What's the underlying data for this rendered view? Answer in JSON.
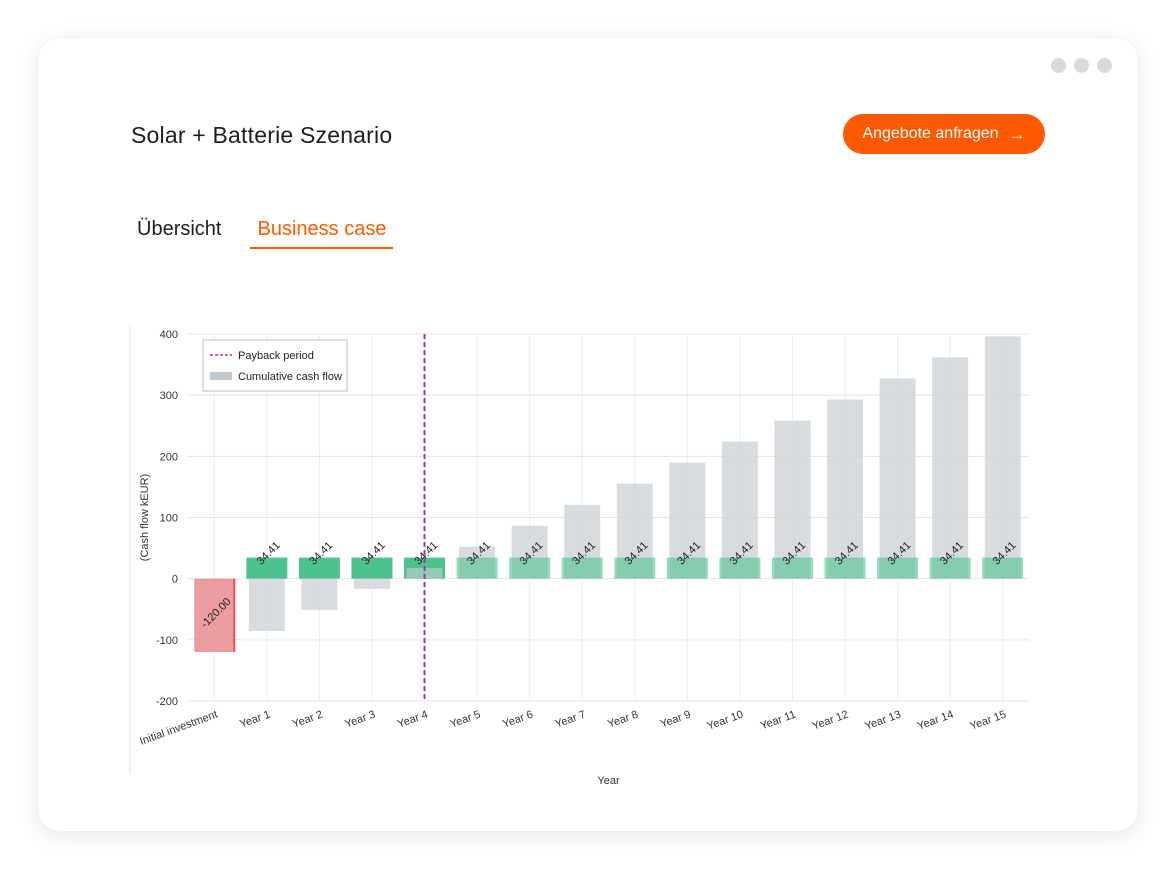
{
  "window": {
    "dots": [
      "dot",
      "dot",
      "dot"
    ]
  },
  "header": {
    "title": "Solar + Batterie Szenario",
    "cta_label": "Angebote anfragen",
    "cta_icon": "arrow-right-icon"
  },
  "tabs": [
    {
      "label": "Übersicht",
      "active": false
    },
    {
      "label": "Business case",
      "active": true
    }
  ],
  "colors": {
    "accent": "#ff5a00",
    "positive": "#4cc28f",
    "negative": "#e88b90",
    "cumulative": "#cfd3d7",
    "payback": "#a03c9c"
  },
  "chart_data": {
    "type": "bar",
    "xlabel": "Year",
    "ylabel": "(Cash flow kEUR)",
    "ylim": [
      -200,
      400
    ],
    "yticks": [
      -200,
      -100,
      0,
      100,
      200,
      300,
      400
    ],
    "categories": [
      "Initial investment",
      "Year 1",
      "Year 2",
      "Year 3",
      "Year 4",
      "Year 5",
      "Year 6",
      "Year 7",
      "Year 8",
      "Year 9",
      "Year 10",
      "Year 11",
      "Year 12",
      "Year 13",
      "Year 14",
      "Year 15"
    ],
    "series": [
      {
        "name": "Cash flow",
        "values": [
          -120.0,
          34.41,
          34.41,
          34.41,
          34.41,
          34.41,
          34.41,
          34.41,
          34.41,
          34.41,
          34.41,
          34.41,
          34.41,
          34.41,
          34.41,
          34.41
        ]
      },
      {
        "name": "Cumulative cash flow",
        "values": [
          -120.0,
          -85.59,
          -51.18,
          -16.77,
          17.64,
          52.05,
          86.46,
          120.87,
          155.28,
          189.69,
          224.1,
          258.51,
          292.92,
          327.33,
          361.74,
          396.15
        ]
      }
    ],
    "data_labels": [
      "-120.00",
      "34.41",
      "34.41",
      "34.41",
      "34.41",
      "34.41",
      "34.41",
      "34.41",
      "34.41",
      "34.41",
      "34.41",
      "34.41",
      "34.41",
      "34.41",
      "34.41",
      "34.41"
    ],
    "payback_period_index": 4,
    "legend": {
      "position": "top-left",
      "entries": [
        "Payback period",
        "Cumulative cash flow"
      ]
    }
  }
}
